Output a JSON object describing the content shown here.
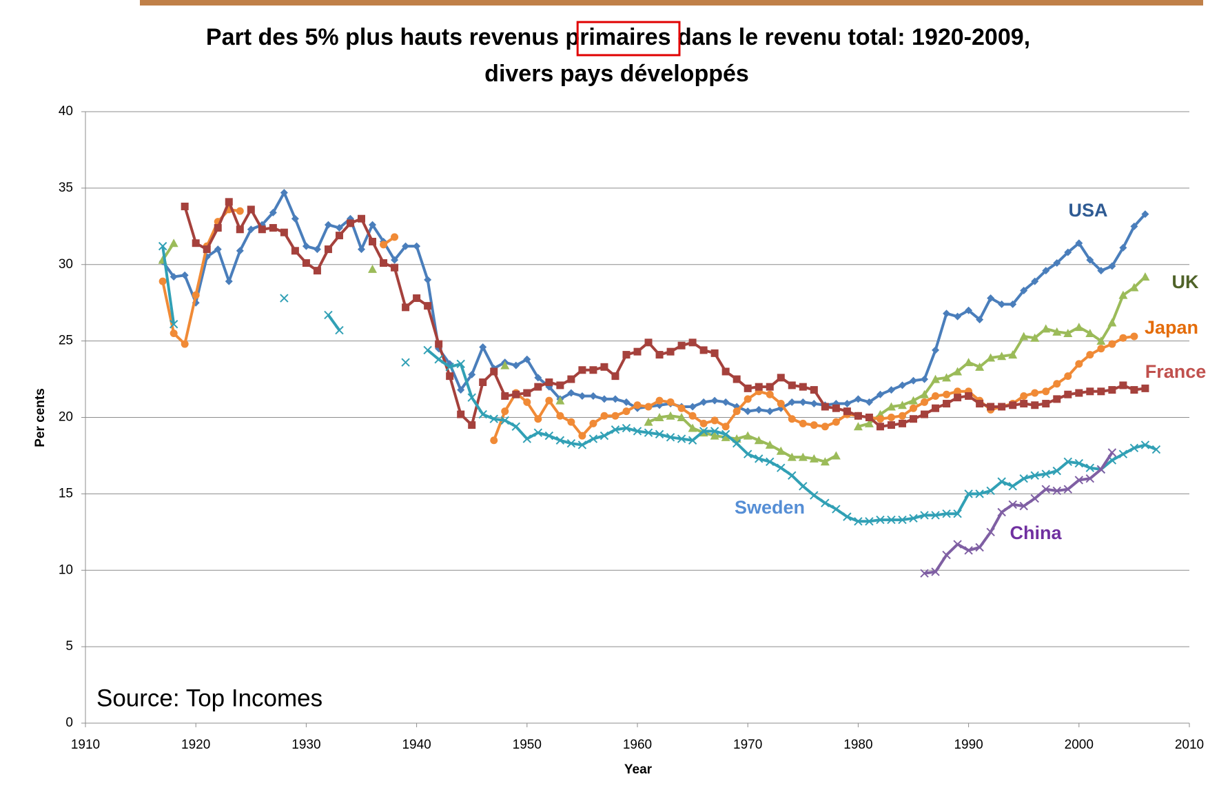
{
  "chart_data": {
    "type": "line",
    "title": [
      "Part des 5%  plus hauts revenus primaires dans le revenu total: 1920-2009,",
      "divers pays développés"
    ],
    "xlabel": "Year",
    "ylabel": "Per cents",
    "annotation": "Source: Top Incomes",
    "xlim": [
      1910,
      2010
    ],
    "xticks": [
      1910,
      1920,
      1930,
      1940,
      1950,
      1960,
      1970,
      1980,
      1990,
      2000,
      2010
    ],
    "ylim": [
      0,
      40
    ],
    "yticks": [
      0,
      5,
      10,
      15,
      20,
      25,
      30,
      35,
      40
    ],
    "grid": true,
    "x": [
      1917,
      1918,
      1919,
      1920,
      1921,
      1922,
      1923,
      1924,
      1925,
      1926,
      1927,
      1928,
      1929,
      1930,
      1931,
      1932,
      1933,
      1934,
      1935,
      1936,
      1937,
      1938,
      1939,
      1940,
      1941,
      1942,
      1943,
      1944,
      1945,
      1946,
      1947,
      1948,
      1949,
      1950,
      1951,
      1952,
      1953,
      1954,
      1955,
      1956,
      1957,
      1958,
      1959,
      1960,
      1961,
      1962,
      1963,
      1964,
      1965,
      1966,
      1967,
      1968,
      1969,
      1970,
      1971,
      1972,
      1973,
      1974,
      1975,
      1976,
      1977,
      1978,
      1979,
      1980,
      1981,
      1982,
      1983,
      1984,
      1985,
      1986,
      1987,
      1988,
      1989,
      1990,
      1991,
      1992,
      1993,
      1994,
      1995,
      1996,
      1997,
      1998,
      1999,
      2000,
      2001,
      2002,
      2003,
      2004,
      2005,
      2006,
      2007
    ],
    "series": [
      {
        "name": "USA",
        "color": "#4a7ebb",
        "label_color": "#2f5b93",
        "marker": "diamond",
        "values": [
          30.2,
          29.2,
          29.3,
          27.5,
          30.5,
          31.0,
          28.9,
          30.9,
          32.3,
          32.6,
          33.4,
          34.7,
          33.0,
          31.2,
          31.0,
          32.6,
          32.4,
          33.0,
          31.0,
          32.6,
          31.5,
          30.3,
          31.2,
          31.2,
          29.0,
          24.5,
          23.5,
          21.8,
          22.8,
          24.6,
          23.2,
          23.6,
          23.4,
          23.8,
          22.6,
          22.0,
          21.2,
          21.6,
          21.4,
          21.4,
          21.2,
          21.2,
          21.0,
          20.6,
          20.7,
          20.8,
          20.9,
          20.7,
          20.7,
          21.0,
          21.1,
          21.0,
          20.7,
          20.4,
          20.5,
          20.4,
          20.6,
          21.0,
          21.0,
          20.9,
          20.8,
          20.9,
          20.9,
          21.2,
          21.0,
          21.5,
          21.8,
          22.1,
          22.4,
          22.5,
          24.4,
          26.8,
          26.6,
          27.0,
          26.4,
          27.8,
          27.4,
          27.4,
          28.3,
          28.9,
          29.6,
          30.1,
          30.8,
          31.4,
          30.3,
          29.6,
          29.9,
          31.1,
          32.5,
          33.3,
          null
        ]
      },
      {
        "name": "UK",
        "color": "#9bbb59",
        "label_color": "#4f6228",
        "marker": "triangle",
        "values": [
          30.3,
          31.4,
          null,
          null,
          null,
          null,
          null,
          null,
          null,
          null,
          null,
          null,
          null,
          null,
          null,
          null,
          null,
          null,
          null,
          29.7,
          null,
          null,
          null,
          null,
          null,
          null,
          null,
          null,
          null,
          null,
          null,
          23.4,
          null,
          null,
          null,
          null,
          21.1,
          null,
          null,
          null,
          null,
          null,
          null,
          null,
          19.7,
          20.0,
          20.1,
          20.0,
          19.3,
          19.0,
          18.8,
          18.7,
          18.6,
          18.8,
          18.5,
          18.2,
          17.8,
          17.4,
          17.4,
          17.3,
          17.1,
          17.5,
          null,
          19.4,
          19.6,
          20.2,
          20.7,
          20.8,
          21.1,
          21.5,
          22.5,
          22.6,
          23.0,
          23.6,
          23.3,
          23.9,
          24.0,
          24.1,
          25.3,
          25.2,
          25.8,
          25.6,
          25.5,
          25.9,
          25.5,
          25.0,
          26.2,
          28.0,
          28.5,
          29.2,
          null
        ]
      },
      {
        "name": "Japan",
        "color": "#f08a36",
        "label_color": "#e46c0a",
        "marker": "circle",
        "values": [
          28.9,
          25.5,
          24.8,
          28.0,
          31.2,
          32.8,
          33.6,
          33.5,
          null,
          null,
          null,
          null,
          null,
          null,
          null,
          null,
          null,
          null,
          null,
          null,
          31.3,
          31.8,
          null,
          null,
          null,
          null,
          null,
          null,
          null,
          null,
          18.5,
          20.4,
          21.6,
          21.0,
          19.9,
          21.1,
          20.1,
          19.7,
          18.8,
          19.6,
          20.1,
          20.1,
          20.4,
          20.8,
          20.7,
          21.1,
          21.0,
          20.6,
          20.1,
          19.6,
          19.8,
          19.4,
          20.4,
          21.2,
          21.7,
          21.5,
          20.9,
          19.9,
          19.6,
          19.5,
          19.4,
          19.7,
          20.2,
          20.1,
          20.0,
          19.9,
          20.0,
          20.1,
          20.6,
          21.0,
          21.4,
          21.5,
          21.7,
          21.7,
          21.1,
          20.5,
          20.7,
          20.9,
          21.4,
          21.6,
          21.7,
          22.2,
          22.7,
          23.5,
          24.1,
          24.5,
          24.8,
          25.2,
          25.3,
          null,
          null
        ]
      },
      {
        "name": "France",
        "color": "#a5413c",
        "label_color": "#c0504d",
        "marker": "square",
        "values": [
          null,
          null,
          33.8,
          31.4,
          31.0,
          32.4,
          34.1,
          32.3,
          33.6,
          32.3,
          32.4,
          32.1,
          30.9,
          30.1,
          29.6,
          31.0,
          31.9,
          32.7,
          33.0,
          31.5,
          30.1,
          29.8,
          27.2,
          27.8,
          27.3,
          24.8,
          22.7,
          20.2,
          19.5,
          22.3,
          23.0,
          21.4,
          21.5,
          21.6,
          22.0,
          22.3,
          22.1,
          22.5,
          23.1,
          23.1,
          23.3,
          22.7,
          24.1,
          24.3,
          24.9,
          24.1,
          24.3,
          24.7,
          24.9,
          24.4,
          24.2,
          23.0,
          22.5,
          21.9,
          22.0,
          22.0,
          22.6,
          22.1,
          22.0,
          21.8,
          20.7,
          20.6,
          20.4,
          20.1,
          20.0,
          19.4,
          19.5,
          19.6,
          19.9,
          20.2,
          20.6,
          20.9,
          21.3,
          21.4,
          20.9,
          20.7,
          20.7,
          20.8,
          20.9,
          20.8,
          20.9,
          21.2,
          21.5,
          21.6,
          21.7,
          21.7,
          21.8,
          22.1,
          21.8,
          21.9,
          null
        ]
      },
      {
        "name": "Sweden",
        "color": "#31a0b5",
        "label_color": "#558ed5",
        "marker": "x",
        "values": [
          31.2,
          26.1,
          null,
          null,
          null,
          null,
          null,
          null,
          null,
          null,
          null,
          27.8,
          null,
          null,
          null,
          26.7,
          25.7,
          null,
          null,
          null,
          null,
          null,
          23.6,
          null,
          24.4,
          23.8,
          23.3,
          23.5,
          21.3,
          20.2,
          19.9,
          19.8,
          19.4,
          18.6,
          19.0,
          18.8,
          18.5,
          18.3,
          18.2,
          18.6,
          18.8,
          19.2,
          19.3,
          19.1,
          19.0,
          18.9,
          18.7,
          18.6,
          18.5,
          19.1,
          19.1,
          18.9,
          18.3,
          17.6,
          17.3,
          17.1,
          16.7,
          16.2,
          15.5,
          14.9,
          14.4,
          14.0,
          13.5,
          13.2,
          13.2,
          13.3,
          13.3,
          13.3,
          13.4,
          13.6,
          13.6,
          13.7,
          13.7,
          15.0,
          15.0,
          15.2,
          15.8,
          15.5,
          16.0,
          16.2,
          16.3,
          16.5,
          17.1,
          17.0,
          16.7,
          16.6,
          17.2,
          17.6,
          18.0,
          18.2,
          17.9
        ]
      },
      {
        "name": "China",
        "color": "#7f5fa3",
        "label_color": "#7030a0",
        "marker": "x",
        "values": [
          null,
          null,
          null,
          null,
          null,
          null,
          null,
          null,
          null,
          null,
          null,
          null,
          null,
          null,
          null,
          null,
          null,
          null,
          null,
          null,
          null,
          null,
          null,
          null,
          null,
          null,
          null,
          null,
          null,
          null,
          null,
          null,
          null,
          null,
          null,
          null,
          null,
          null,
          null,
          null,
          null,
          null,
          null,
          null,
          null,
          null,
          null,
          null,
          null,
          null,
          null,
          null,
          null,
          null,
          null,
          null,
          null,
          null,
          null,
          null,
          null,
          null,
          null,
          null,
          null,
          null,
          null,
          null,
          null,
          9.8,
          9.9,
          11.0,
          11.7,
          11.3,
          11.5,
          12.5,
          13.8,
          14.3,
          14.2,
          14.7,
          15.3,
          15.2,
          15.3,
          15.9,
          16.0,
          16.6,
          17.7,
          null,
          null,
          null,
          null
        ]
      }
    ]
  }
}
